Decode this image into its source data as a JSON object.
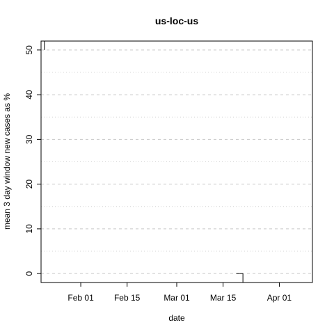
{
  "chart_data": {
    "type": "line",
    "title": "us-loc-us",
    "xlabel": "date",
    "ylabel": "mean  3  day window new cases as %",
    "x_ticks": [
      "Feb 01",
      "Feb 15",
      "Mar 01",
      "Mar 15",
      "Apr 01"
    ],
    "x_tick_dates": [
      "2020-02-01",
      "2020-02-15",
      "2020-03-01",
      "2020-03-15",
      "2020-04-01"
    ],
    "xlim": [
      "2020-01-20",
      "2020-04-11"
    ],
    "y_ticks": [
      0,
      10,
      20,
      30,
      40,
      50
    ],
    "ylim": [
      -2,
      52
    ],
    "y_major_gridlines": [
      0,
      10,
      20,
      30,
      40,
      50
    ],
    "y_minor_gridlines": [
      5,
      15,
      25,
      35,
      45
    ],
    "gridlines": "horizontal dashed (major) and dotted (minor), light gray",
    "series": [
      {
        "color": "#000000",
        "x": [
          "2020-01-21",
          "2020-01-21",
          "2020-03-19",
          "2020-03-20",
          "2020-03-20",
          "2020-03-21",
          "2020-03-21"
        ],
        "y": [
          52,
          50,
          0,
          0,
          0,
          0,
          -2
        ]
      }
    ]
  }
}
